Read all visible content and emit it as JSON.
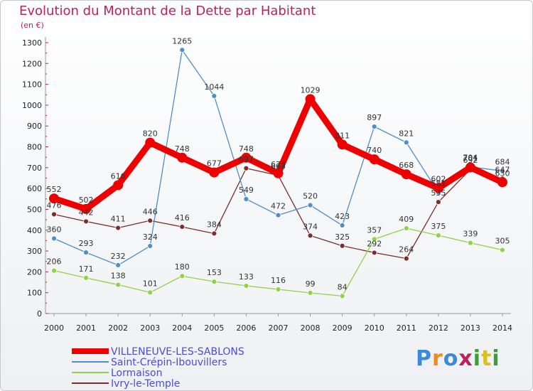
{
  "chart_data": {
    "type": "line",
    "title": "Evolution du Montant de la Dette par Habitant",
    "subtitle": "(en €)",
    "xlabel": "",
    "ylabel": "",
    "ylim": [
      0,
      1300
    ],
    "yticks": [
      0,
      100,
      200,
      300,
      400,
      500,
      600,
      700,
      800,
      900,
      1000,
      1100,
      1200,
      1300
    ],
    "x": [
      "2000",
      "2001",
      "2002",
      "2003",
      "2004",
      "2005",
      "2006",
      "2007",
      "2008",
      "2009",
      "2010",
      "2011",
      "2012",
      "2013",
      "2014"
    ],
    "series": [
      {
        "name": "VILLENEUVE-LES-SABLONS",
        "color": "#ee0000",
        "values": [
          552,
          502,
          616,
          820,
          748,
          677,
          748,
          673,
          1029,
          811,
          740,
          668,
          602,
          701,
          630
        ]
      },
      {
        "name": "Saint-Crépin-Ibouvillers",
        "color": "#4f8ec9",
        "values": [
          360,
          293,
          232,
          324,
          1265,
          1044,
          549,
          472,
          520,
          423,
          897,
          821,
          581,
          704,
          684
        ]
      },
      {
        "name": "Lormaison",
        "color": "#8ed24a",
        "values": [
          206,
          171,
          138,
          101,
          180,
          153,
          133,
          116,
          99,
          84,
          357,
          409,
          375,
          339,
          305
        ]
      },
      {
        "name": "Ivry-le-Temple",
        "color": "#7a2e2e",
        "values": [
          476,
          442,
          411,
          446,
          416,
          384,
          697,
          663,
          374,
          325,
          292,
          264,
          535,
          692,
          647
        ]
      }
    ],
    "legend_position": "bottom-left"
  },
  "branding": {
    "logo_text": "Proxiti"
  }
}
